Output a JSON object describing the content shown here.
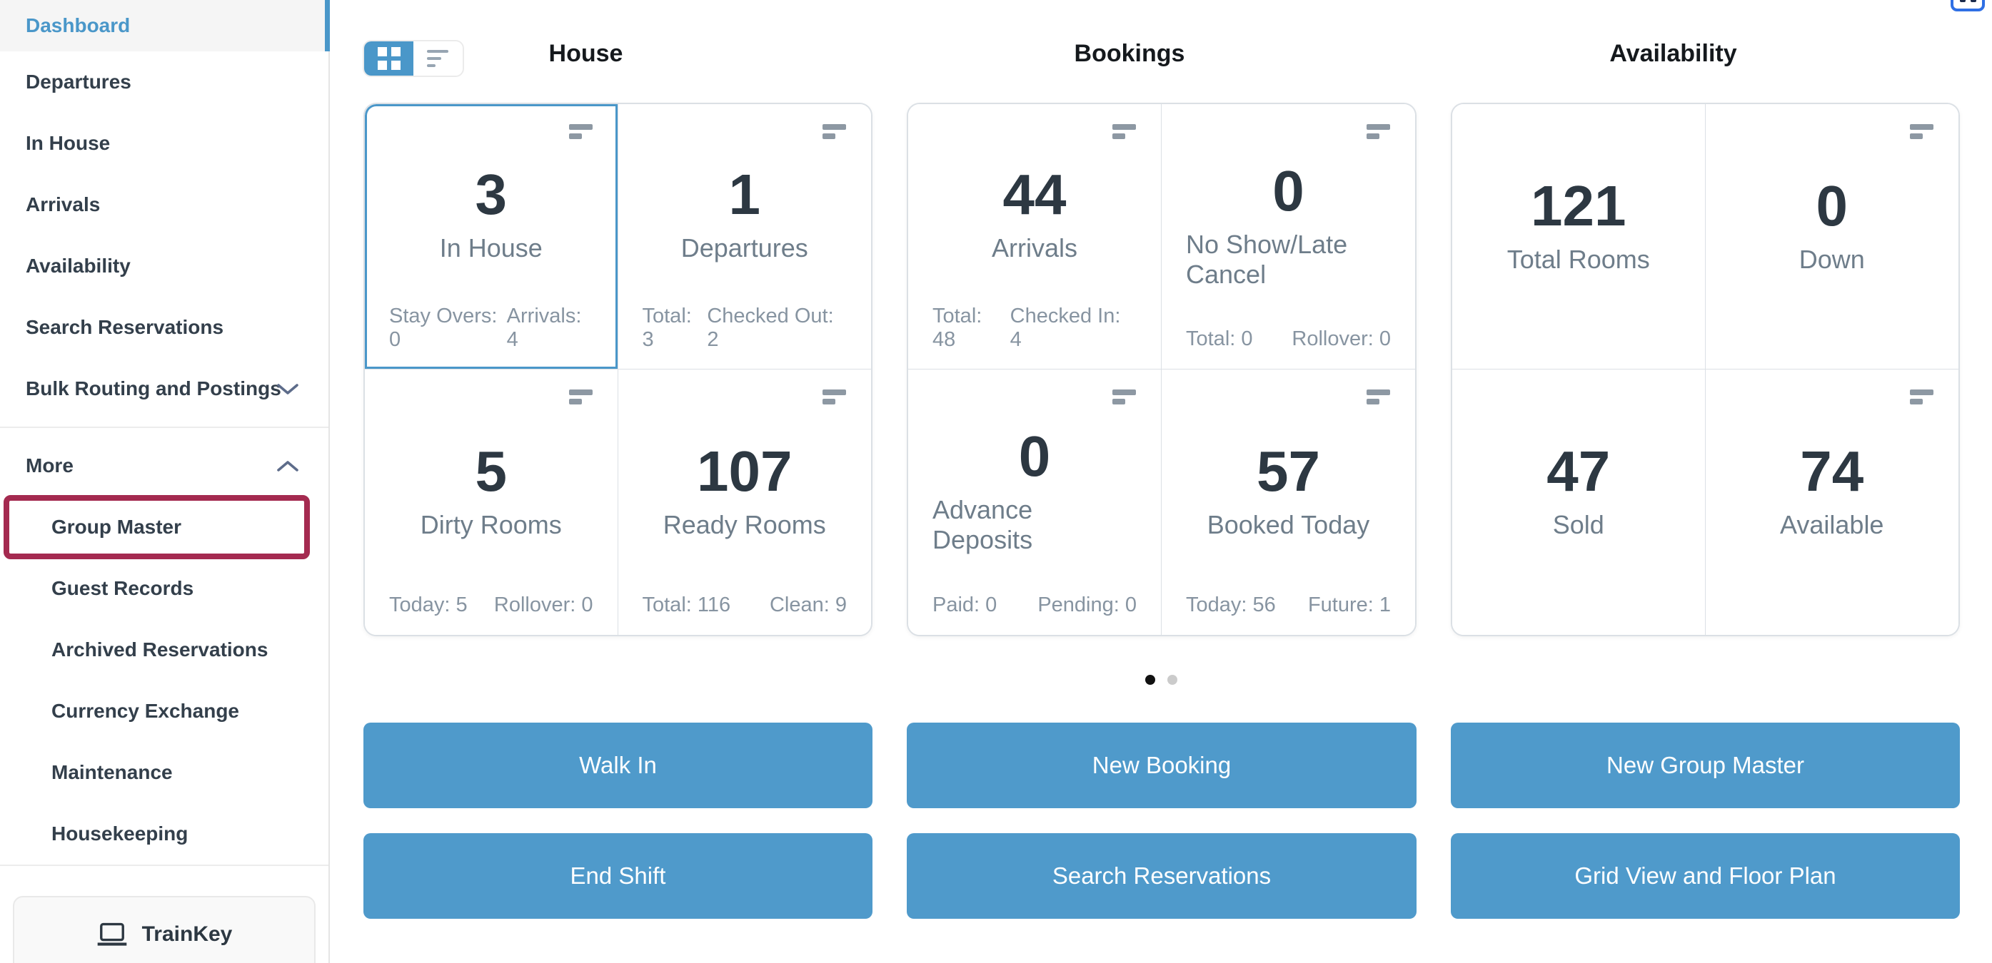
{
  "sidebar": {
    "items": [
      {
        "label": "Dashboard",
        "active": true
      },
      {
        "label": "Departures"
      },
      {
        "label": "In House"
      },
      {
        "label": "Arrivals"
      },
      {
        "label": "Availability"
      },
      {
        "label": "Search Reservations"
      },
      {
        "label": "Bulk Routing and Postings",
        "chevron": "down"
      },
      {
        "label": "More",
        "chevron": "up",
        "divider_before": true
      },
      {
        "label": "Group Master",
        "indent": true,
        "highlighted": true
      },
      {
        "label": "Guest Records",
        "indent": true
      },
      {
        "label": "Archived Reservations",
        "indent": true
      },
      {
        "label": "Currency Exchange",
        "indent": true
      },
      {
        "label": "Maintenance",
        "indent": true
      },
      {
        "label": "Housekeeping",
        "indent": true
      }
    ],
    "trainkey": {
      "label": "TrainKey",
      "icon": "laptop-icon"
    }
  },
  "view_toggle": {
    "options": [
      {
        "icon": "grid-icon",
        "active": true
      },
      {
        "icon": "list-icon",
        "active": false
      }
    ]
  },
  "columns": [
    {
      "title": "House",
      "cards": [
        {
          "value": "3",
          "label": "In House",
          "selected": true,
          "menu_icon": true,
          "stats": [
            {
              "k": "Stay Overs",
              "v": "0"
            },
            {
              "k": "Arrivals",
              "v": "4"
            }
          ]
        },
        {
          "value": "1",
          "label": "Departures",
          "menu_icon": true,
          "stats": [
            {
              "k": "Total",
              "v": "3"
            },
            {
              "k": "Checked Out",
              "v": "2"
            }
          ]
        },
        {
          "value": "5",
          "label": "Dirty Rooms",
          "menu_icon": true,
          "stats": [
            {
              "k": "Today",
              "v": "5"
            },
            {
              "k": "Rollover",
              "v": "0"
            }
          ]
        },
        {
          "value": "107",
          "label": "Ready Rooms",
          "menu_icon": true,
          "stats": [
            {
              "k": "Total",
              "v": "116"
            },
            {
              "k": "Clean",
              "v": "9"
            }
          ]
        }
      ]
    },
    {
      "title": "Bookings",
      "cards": [
        {
          "value": "44",
          "label": "Arrivals",
          "menu_icon": true,
          "stats": [
            {
              "k": "Total",
              "v": "48"
            },
            {
              "k": "Checked In",
              "v": "4"
            }
          ]
        },
        {
          "value": "0",
          "label": "No Show/Late Cancel",
          "menu_icon": true,
          "stats": [
            {
              "k": "Total",
              "v": "0"
            },
            {
              "k": "Rollover",
              "v": "0"
            }
          ]
        },
        {
          "value": "0",
          "label": "Advance Deposits",
          "menu_icon": true,
          "stats": [
            {
              "k": "Paid",
              "v": "0"
            },
            {
              "k": "Pending",
              "v": "0"
            }
          ]
        },
        {
          "value": "57",
          "label": "Booked Today",
          "menu_icon": true,
          "stats": [
            {
              "k": "Today",
              "v": "56"
            },
            {
              "k": "Future",
              "v": "1"
            }
          ]
        }
      ]
    },
    {
      "title": "Availability",
      "cards": [
        {
          "value": "121",
          "label": "Total Rooms",
          "menu_icon": false,
          "stats": []
        },
        {
          "value": "0",
          "label": "Down",
          "menu_icon": true,
          "stats": []
        },
        {
          "value": "47",
          "label": "Sold",
          "menu_icon": false,
          "stats": []
        },
        {
          "value": "74",
          "label": "Available",
          "menu_icon": true,
          "stats": []
        }
      ]
    }
  ],
  "pagination": {
    "total": 2,
    "active_index": 0
  },
  "action_buttons": {
    "rows": [
      [
        "Walk In",
        "New Booking",
        "New Group Master"
      ],
      [
        "End Shift",
        "Search Reservations",
        "Grid View and Floor Plan"
      ]
    ]
  },
  "colors": {
    "accent_blue": "#4A97C9",
    "button_blue": "#4F9ACB",
    "highlight_maroon": "#A42A50",
    "number_text": "#2D3842",
    "label_text": "#6E7D8A",
    "stats_text": "#8794A1",
    "card_border": "#DBE0E5",
    "dot_active": "#111111",
    "dot_inactive": "#CBCBCB"
  }
}
